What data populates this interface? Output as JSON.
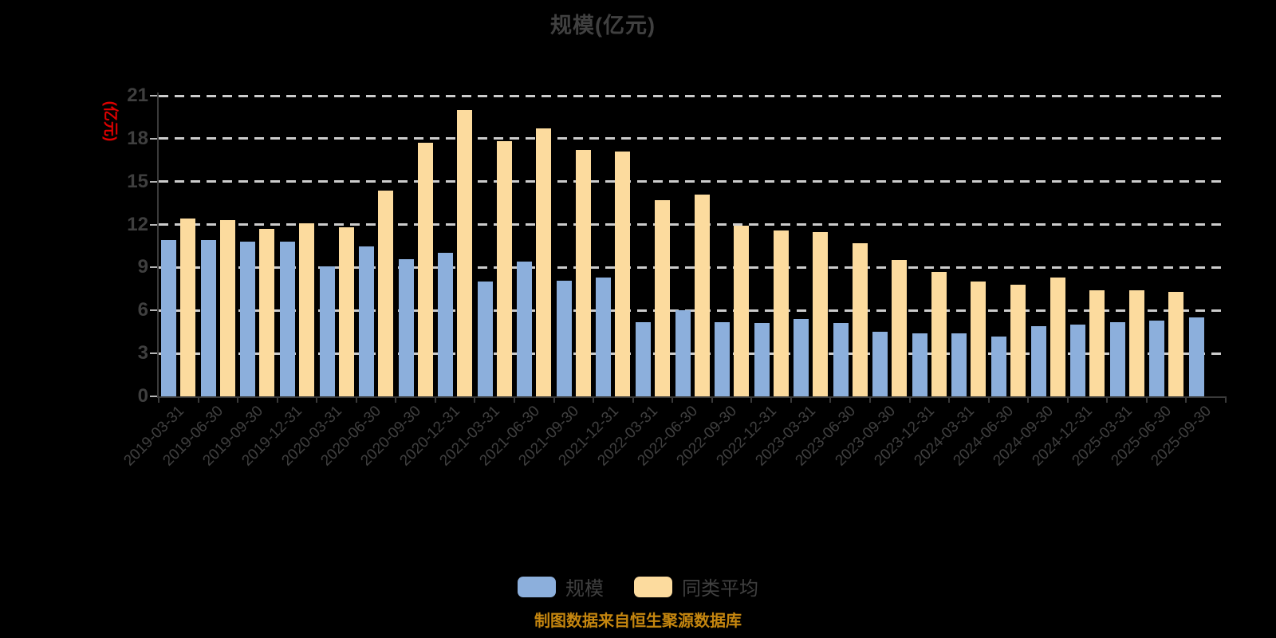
{
  "title": "规模(亿元)",
  "footer": "制图数据来自恒生聚源数据库",
  "colors": {
    "scale_bar": "#8cafdc",
    "average_bar": "#fcdb9e",
    "axis_name_red": "#de0000",
    "footer_orange": "#c5860f",
    "text_gray": "#404040",
    "gridline": "#cccccc",
    "axis_line": "#3a3a3a"
  },
  "legend": {
    "items": [
      {
        "label": "规模",
        "color": "#8cafdc"
      },
      {
        "label": "同类平均",
        "color": "#fcdb9e"
      }
    ]
  },
  "y_axis": {
    "name": "(亿元)",
    "ticks": [
      0,
      3,
      6,
      9,
      12,
      15,
      18,
      21
    ],
    "max": 21
  },
  "chart_data": {
    "type": "bar",
    "title": "规模(亿元)",
    "ylabel": "(亿元)",
    "ylim": [
      0,
      21
    ],
    "grid": true,
    "gridline_style": "dashed",
    "legend_position": "bottom",
    "categories": [
      "2019-03-31",
      "2019-06-30",
      "2019-09-30",
      "2019-12-31",
      "2020-03-31",
      "2020-06-30",
      "2020-09-30",
      "2020-12-31",
      "2021-03-31",
      "2021-06-30",
      "2021-09-30",
      "2021-12-31",
      "2022-03-31",
      "2022-06-30",
      "2022-09-30",
      "2022-12-31",
      "2023-03-31",
      "2023-06-30",
      "2023-09-30",
      "2023-12-31",
      "2024-03-31",
      "2024-06-30",
      "2024-09-30",
      "2024-12-31",
      "2025-03-31",
      "2025-06-30",
      "2025-09-30"
    ],
    "series": [
      {
        "name": "规模",
        "color": "#8cafdc",
        "values": [
          10.9,
          10.9,
          10.8,
          10.8,
          9.1,
          10.5,
          9.6,
          10.0,
          8.0,
          9.4,
          8.1,
          8.3,
          5.2,
          6.0,
          5.2,
          5.1,
          5.4,
          5.1,
          4.5,
          4.4,
          4.4,
          4.2,
          4.9,
          5.0,
          5.2,
          5.3,
          5.5
        ]
      },
      {
        "name": "同类平均",
        "color": "#fcdb9e",
        "values": [
          12.4,
          12.3,
          11.7,
          12.1,
          11.8,
          14.4,
          17.7,
          20.0,
          17.8,
          18.7,
          17.2,
          17.1,
          13.7,
          14.1,
          11.9,
          11.6,
          11.5,
          10.7,
          9.5,
          8.7,
          8.0,
          7.8,
          8.3,
          7.4,
          7.4,
          7.3,
          null
        ]
      }
    ]
  }
}
